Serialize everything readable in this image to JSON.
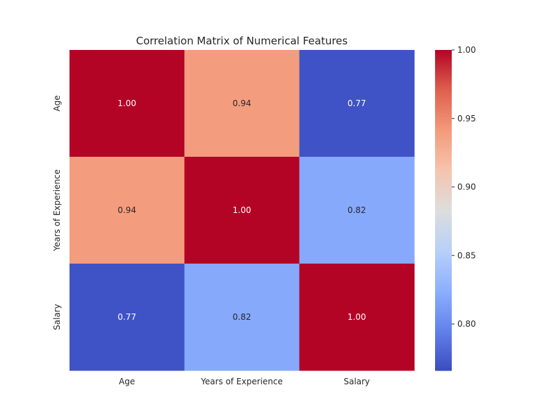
{
  "chart_data": {
    "type": "heatmap",
    "title": "Correlation Matrix of Numerical Features",
    "x_categories": [
      "Age",
      "Years of Experience",
      "Salary"
    ],
    "y_categories": [
      "Age",
      "Years of Experience",
      "Salary"
    ],
    "values": [
      [
        1.0,
        0.94,
        0.77
      ],
      [
        0.94,
        1.0,
        0.82
      ],
      [
        0.77,
        0.82,
        1.0
      ]
    ],
    "annotations": [
      [
        "1.00",
        "0.94",
        "0.77"
      ],
      [
        "0.94",
        "1.00",
        "0.82"
      ],
      [
        "0.77",
        "0.82",
        "1.00"
      ]
    ],
    "colormap": "coolwarm",
    "color_range": [
      0.7661,
      1.0
    ],
    "colorbar": {
      "ticks": [
        0.8,
        0.85,
        0.9,
        0.95,
        1.0
      ],
      "tick_labels": [
        "0.80",
        "0.85",
        "0.90",
        "0.95",
        "1.00"
      ]
    },
    "grid": false
  }
}
